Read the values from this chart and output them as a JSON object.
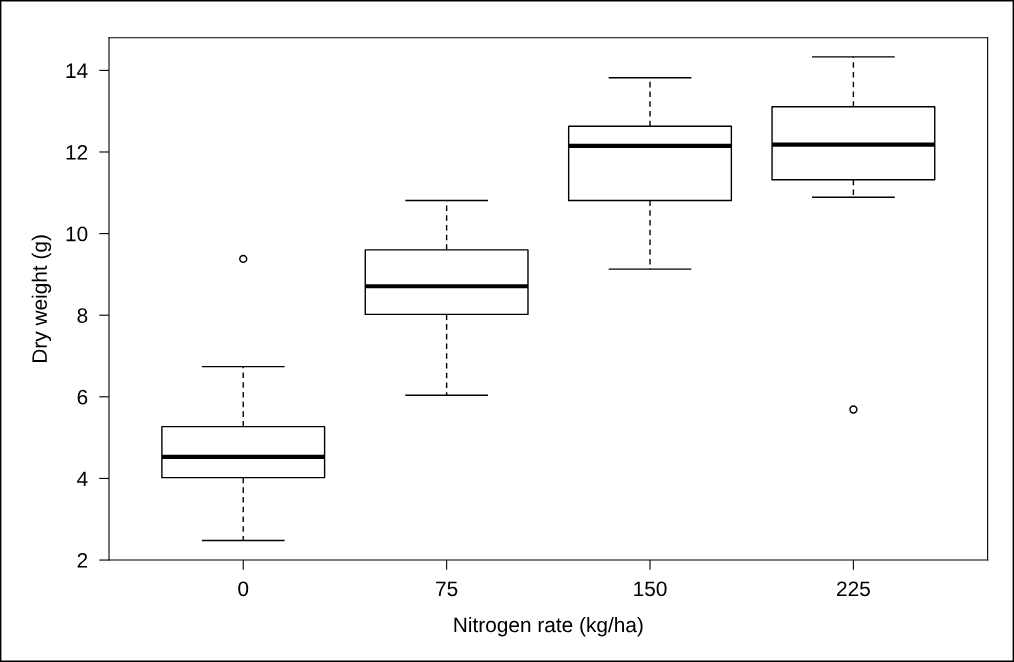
{
  "chart_data": {
    "type": "box",
    "xlabel": "Nitrogen rate (kg/ha)",
    "ylabel": "Dry weight (g)",
    "categories": [
      "0",
      "75",
      "150",
      "225"
    ],
    "boxes": [
      {
        "low": 2.48,
        "q1": 4.02,
        "median": 4.53,
        "q3": 5.27,
        "high": 6.74,
        "outliers": [
          9.38
        ]
      },
      {
        "low": 6.04,
        "q1": 8.02,
        "median": 8.71,
        "q3": 9.6,
        "high": 10.81
      },
      {
        "low": 9.13,
        "q1": 10.81,
        "median": 12.15,
        "q3": 12.63,
        "high": 13.82
      },
      {
        "low": 10.89,
        "q1": 11.32,
        "median": 12.18,
        "q3": 13.11,
        "high": 14.33,
        "outliers": [
          5.69
        ]
      }
    ],
    "ylim": [
      2.0,
      14.8
    ],
    "yticks": [
      2,
      4,
      6,
      8,
      10,
      12,
      14
    ],
    "grid": false
  }
}
